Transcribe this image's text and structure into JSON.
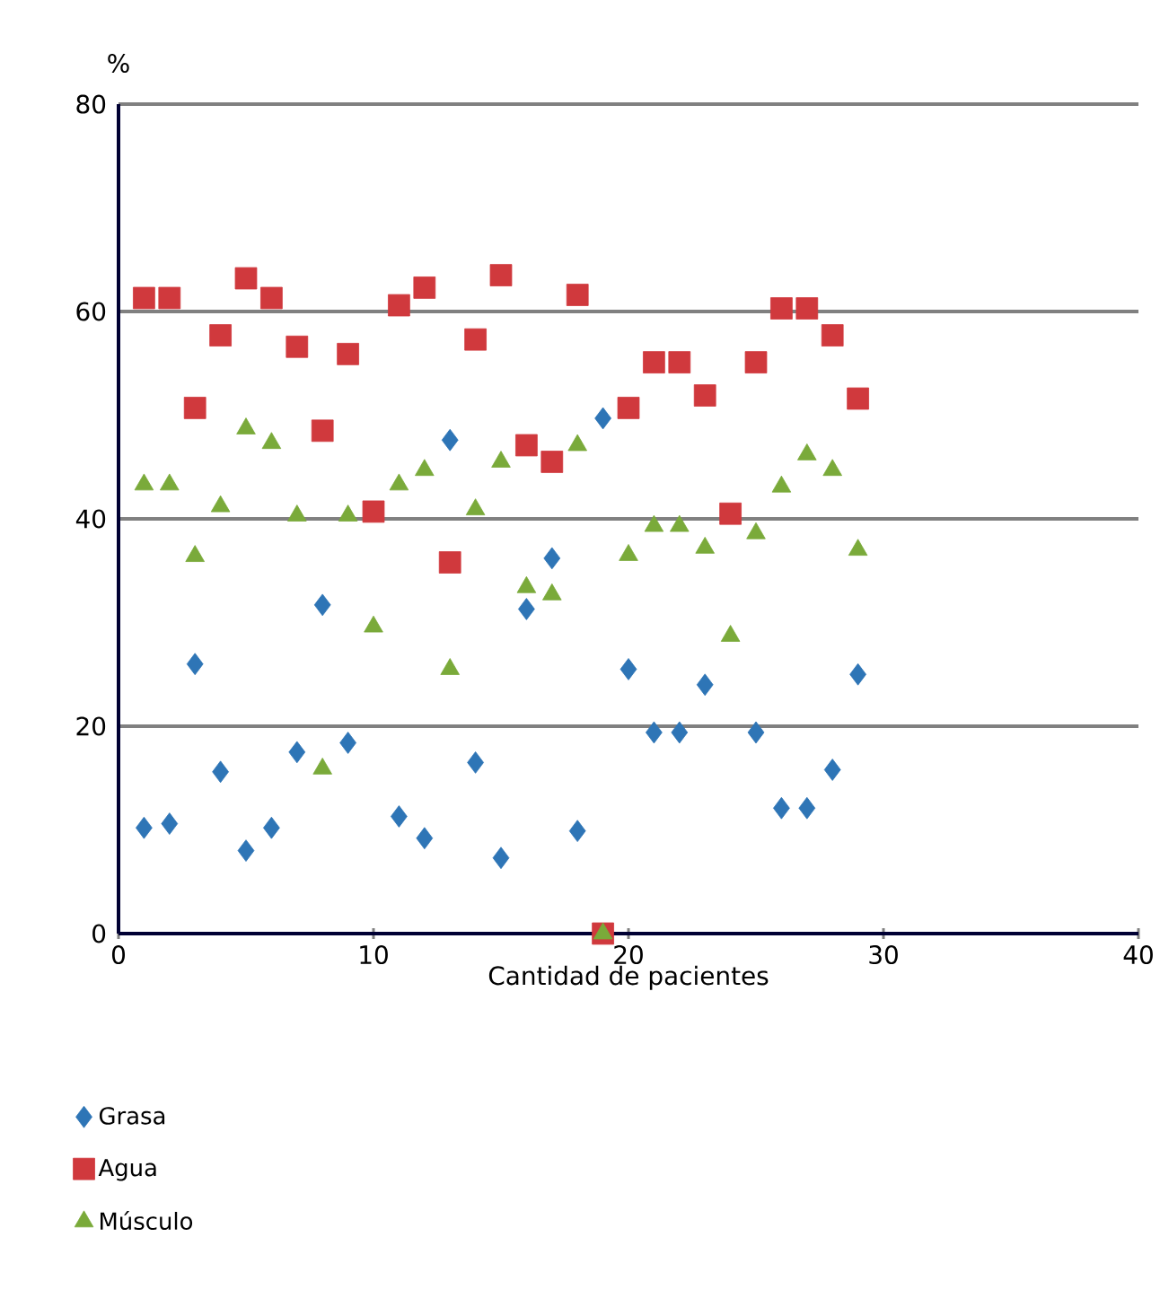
{
  "chart_data": {
    "type": "scatter",
    "xlabel": "Cantidad de pacientes",
    "ylabel": "%",
    "xlim": [
      0,
      40
    ],
    "xticks": [
      0,
      10,
      20,
      30,
      40
    ],
    "ylim": [
      0,
      80
    ],
    "yticks": [
      0,
      20,
      40,
      60,
      80
    ],
    "grid": "y",
    "legend": "bottom",
    "series": [
      {
        "name": "Grasa",
        "color": "#2e75b6",
        "marker": "diamond",
        "x": [
          1,
          2,
          3,
          4,
          5,
          6,
          7,
          8,
          9,
          10,
          11,
          12,
          13,
          14,
          15,
          16,
          17,
          18,
          19,
          20,
          21,
          22,
          23,
          25,
          26,
          27,
          28,
          29
        ],
        "values": [
          10.2,
          10.6,
          26,
          15.6,
          8,
          10.2,
          17.5,
          31.7,
          18.4,
          null,
          11.3,
          9.2,
          47.6,
          16.5,
          7.3,
          31.3,
          36.2,
          9.9,
          49.7,
          25.5,
          19.4,
          19.4,
          24,
          19.4,
          12.1,
          12.1,
          15.8,
          25
        ]
      },
      {
        "name": "Agua",
        "color": "#d0393d",
        "marker": "square",
        "x": [
          1,
          2,
          3,
          4,
          5,
          6,
          7,
          8,
          9,
          10,
          11,
          12,
          13,
          14,
          15,
          16,
          17,
          18,
          19,
          20,
          21,
          22,
          23,
          24,
          25,
          26,
          27,
          28,
          29
        ],
        "values": [
          61.3,
          61.3,
          50.7,
          57.7,
          63.2,
          61.3,
          56.6,
          48.5,
          55.9,
          40.7,
          60.6,
          62.3,
          35.8,
          57.3,
          63.5,
          47.1,
          45.5,
          61.6,
          0,
          50.7,
          55.1,
          55.1,
          51.9,
          40.5,
          55.1,
          60.3,
          60.3,
          57.7,
          51.6
        ]
      },
      {
        "name": "Músculo",
        "color": "#7aaa3a",
        "marker": "triangle",
        "x": [
          1,
          2,
          3,
          4,
          5,
          6,
          7,
          8,
          9,
          10,
          11,
          12,
          13,
          14,
          15,
          16,
          17,
          18,
          19,
          20,
          21,
          22,
          23,
          24,
          25,
          26,
          27,
          28,
          29
        ],
        "values": [
          43.3,
          43.3,
          36.4,
          41.2,
          48.7,
          47.3,
          40.3,
          15.9,
          40.3,
          29.6,
          43.3,
          44.7,
          25.5,
          40.9,
          45.5,
          33.4,
          32.7,
          47.1,
          0,
          36.5,
          39.3,
          39.3,
          37.2,
          28.7,
          38.6,
          43.1,
          46.2,
          44.7,
          37
        ]
      }
    ]
  }
}
